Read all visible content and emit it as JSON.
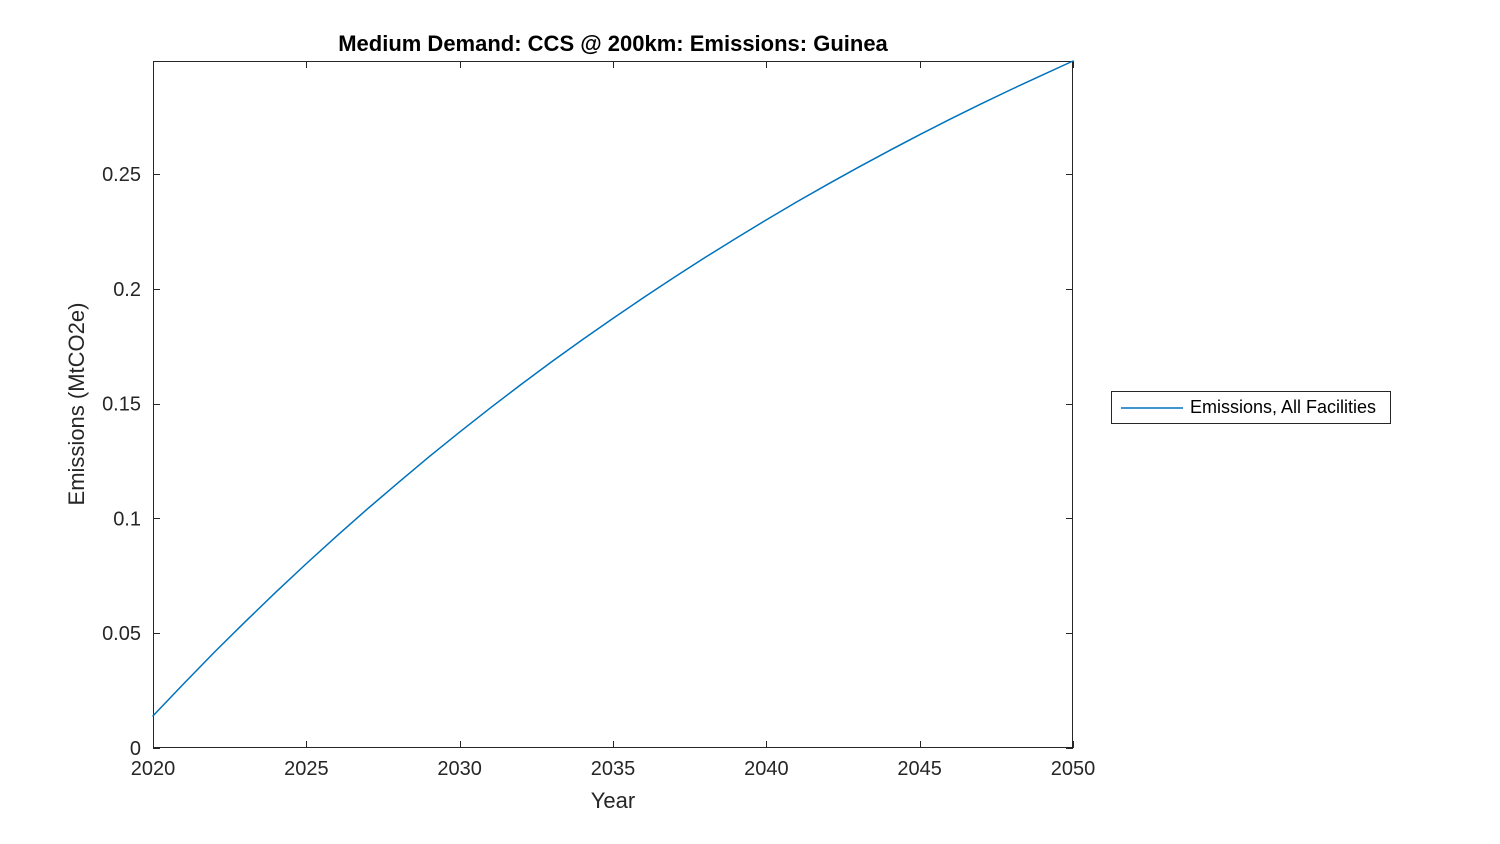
{
  "figure": {
    "title": "Medium Demand: CCS @ 200km: Emissions: Guinea",
    "xlabel": "Year",
    "ylabel": "Emissions (MtCO2e)"
  },
  "legend": {
    "position": "right-outside",
    "entries": [
      {
        "label": "Emissions, All Facilities",
        "color": "#0072BD"
      }
    ]
  },
  "colors": {
    "line": "#0072BD",
    "axis": "#262626",
    "title": "#000000",
    "background": "#ffffff"
  },
  "chart_data": {
    "type": "line",
    "title": "Medium Demand: CCS @ 200km: Emissions: Guinea",
    "xlabel": "Year",
    "ylabel": "Emissions (MtCO2e)",
    "grid": false,
    "box": true,
    "tick_direction": "in",
    "legend_position": "right-outside",
    "xlim": [
      2020,
      2050
    ],
    "ylim": [
      0,
      0.2992
    ],
    "xticks": [
      2020,
      2025,
      2030,
      2035,
      2040,
      2045,
      2050
    ],
    "xtick_labels": [
      "2020",
      "2025",
      "2030",
      "2035",
      "2040",
      "2045",
      "2050"
    ],
    "yticks": [
      0,
      0.05,
      0.1,
      0.15,
      0.2,
      0.25
    ],
    "ytick_labels": [
      "0",
      "0.05",
      "0.1",
      "0.15",
      "0.2",
      "0.25"
    ],
    "x": [
      2020,
      2021,
      2022,
      2023,
      2024,
      2025,
      2026,
      2027,
      2028,
      2029,
      2030,
      2031,
      2032,
      2033,
      2034,
      2035,
      2036,
      2037,
      2038,
      2039,
      2040,
      2041,
      2042,
      2043,
      2044,
      2045,
      2046,
      2047,
      2048,
      2049,
      2050
    ],
    "series": [
      {
        "name": "Emissions, All Facilities",
        "color": "#0072BD",
        "values": [
          0.014,
          0.028,
          0.0417,
          0.0549,
          0.0678,
          0.0803,
          0.0924,
          0.1042,
          0.1156,
          0.1268,
          0.1376,
          0.1481,
          0.1583,
          0.1682,
          0.1778,
          0.1871,
          0.1962,
          0.205,
          0.2136,
          0.2219,
          0.23,
          0.2379,
          0.2455,
          0.2529,
          0.2601,
          0.2671,
          0.2739,
          0.2805,
          0.2869,
          0.2931,
          0.2992
        ]
      }
    ]
  }
}
